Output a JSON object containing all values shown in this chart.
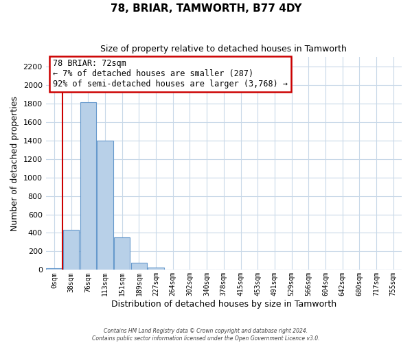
{
  "title": "78, BRIAR, TAMWORTH, B77 4DY",
  "subtitle": "Size of property relative to detached houses in Tamworth",
  "xlabel": "Distribution of detached houses by size in Tamworth",
  "ylabel": "Number of detached properties",
  "bar_labels": [
    "0sqm",
    "38sqm",
    "76sqm",
    "113sqm",
    "151sqm",
    "189sqm",
    "227sqm",
    "264sqm",
    "302sqm",
    "340sqm",
    "378sqm",
    "415sqm",
    "453sqm",
    "491sqm",
    "529sqm",
    "566sqm",
    "604sqm",
    "642sqm",
    "680sqm",
    "717sqm",
    "755sqm"
  ],
  "bar_values": [
    20,
    430,
    1810,
    1400,
    350,
    80,
    25,
    5,
    0,
    0,
    0,
    0,
    0,
    0,
    0,
    0,
    0,
    0,
    0,
    0,
    0
  ],
  "bar_color": "#b8d0e8",
  "bar_edge_color": "#6699cc",
  "highlight_color": "#cc0000",
  "annotation_title": "78 BRIAR: 72sqm",
  "annotation_line1": "← 7% of detached houses are smaller (287)",
  "annotation_line2": "92% of semi-detached houses are larger (3,768) →",
  "annotation_box_color": "#ffffff",
  "annotation_box_edge": "#cc0000",
  "ylim": [
    0,
    2300
  ],
  "yticks": [
    0,
    200,
    400,
    600,
    800,
    1000,
    1200,
    1400,
    1600,
    1800,
    2000,
    2200
  ],
  "footer_line1": "Contains HM Land Registry data © Crown copyright and database right 2024.",
  "footer_line2": "Contains public sector information licensed under the Open Government Licence v3.0.",
  "background_color": "#ffffff",
  "grid_color": "#c8d8e8"
}
